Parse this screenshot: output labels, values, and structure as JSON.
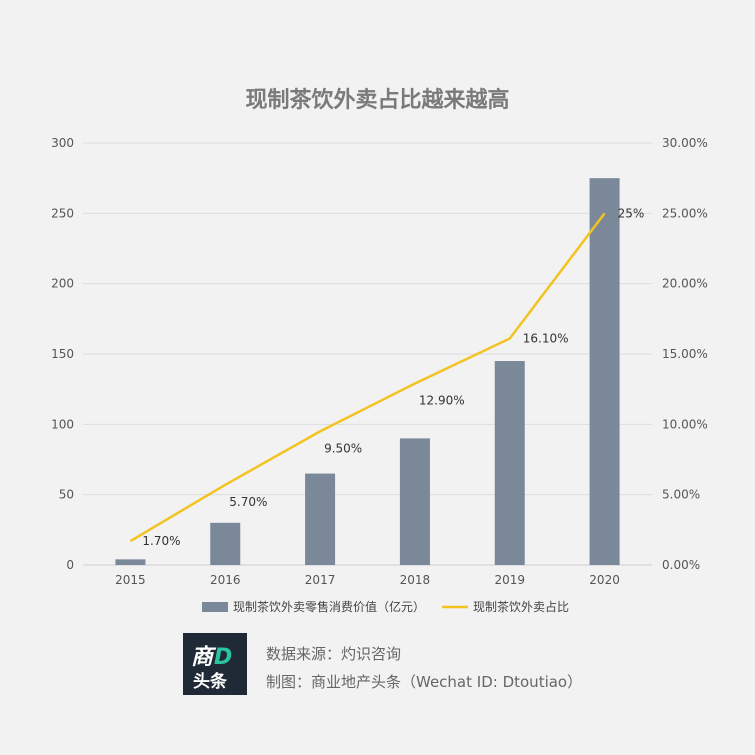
{
  "chart_data": {
    "type": "bar",
    "title": "现制茶饮外卖占比越来越高",
    "categories": [
      "2015",
      "2016",
      "2017",
      "2018",
      "2019",
      "2020"
    ],
    "series": [
      {
        "name": "现制茶饮外卖零售消费价值（亿元）",
        "type": "bar",
        "axis": "left",
        "color": "#7b8899",
        "values": [
          4,
          30,
          65,
          90,
          145,
          275
        ]
      },
      {
        "name": "现制茶饮外卖占比",
        "type": "line",
        "axis": "right",
        "color": "#f3c321",
        "values": [
          1.7,
          5.7,
          9.5,
          12.9,
          16.1,
          25
        ],
        "labels": [
          "1.70%",
          "5.70%",
          "9.50%",
          "12.90%",
          "16.10%",
          "25%"
        ]
      }
    ],
    "y_left": {
      "min": 0,
      "max": 300,
      "ticks": [
        "0",
        "50",
        "100",
        "150",
        "200",
        "250",
        "300"
      ]
    },
    "y_right": {
      "min": 0,
      "max": 30,
      "ticks": [
        "0.00%",
        "5.00%",
        "10.00%",
        "15.00%",
        "20.00%",
        "25.00%",
        "30.00%"
      ]
    },
    "grid": true,
    "legend_position": "bottom"
  },
  "footer": {
    "logo_top_char": "商",
    "logo_top_accent": "D",
    "logo_bottom": "头条",
    "source": "数据来源：灼识咨询",
    "credit": "制图：商业地产头条（Wechat ID: Dtoutiao）"
  }
}
